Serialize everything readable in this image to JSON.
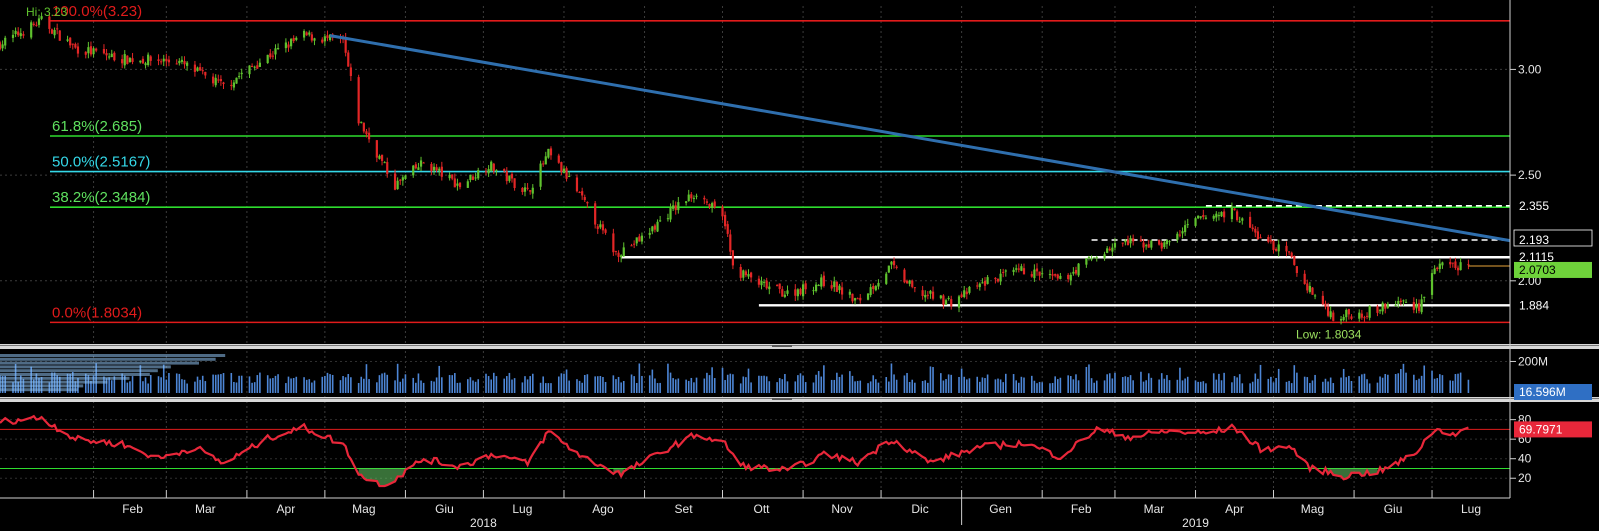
{
  "chart_data": [
    {
      "type": "candlestick",
      "panel": "price",
      "ylim": [
        1.72,
        3.3
      ],
      "y_ticks": [
        2.0,
        2.5,
        3.0
      ],
      "y_tick_labels": [
        "2.00",
        "2.50",
        "3.00"
      ],
      "colors": {
        "up": "#5fc22e",
        "down": "#e32626",
        "fib_red": "#e11b1b",
        "fib_green": "#2edc2e",
        "fib_cyan": "#34d8e8",
        "trend": "#2f6fae"
      },
      "hi_label": "Hi: 3.23",
      "low_label": "Low: 1.8034",
      "fib_levels": [
        {
          "label": "100.0%(3.23)",
          "value": 3.23,
          "color": "#e11b1b",
          "text_color": "#e11b1b"
        },
        {
          "label": "61.8%(2.685)",
          "value": 2.685,
          "color": "#2edc2e",
          "text_color": "#5fe05f"
        },
        {
          "label": "50.0%(2.5167)",
          "value": 2.5167,
          "color": "#34d8e8",
          "text_color": "#34d8e8"
        },
        {
          "label": "38.2%(2.3484)",
          "value": 2.3484,
          "color": "#2edc2e",
          "text_color": "#5fe05f"
        },
        {
          "label": "0.0%(1.8034)",
          "value": 1.8034,
          "color": "#e11b1b",
          "text_color": "#e11b1b"
        }
      ],
      "trendline": {
        "start": [
          "2018-05-03",
          3.16
        ],
        "end": [
          "2019-07-31",
          2.19
        ]
      },
      "levels": [
        {
          "tag": "2.355",
          "value": 2.355,
          "style": "dashed",
          "from": "2019-04-05"
        },
        {
          "tag": "2.193",
          "value": 2.193,
          "style": "dashed",
          "from": "2019-02-20"
        },
        {
          "tag": "2.1115",
          "value": 2.1115,
          "style": "solid",
          "from": "2018-08-23"
        },
        {
          "tag": "1.884",
          "value": 1.884,
          "style": "solid",
          "from": "2018-10-15"
        }
      ],
      "last_price_tag": "2.0703",
      "last_price": 2.0703,
      "anchors": [
        [
          "2017-12-27",
          3.12
        ],
        [
          "2018-01-12",
          3.23
        ],
        [
          "2018-01-25",
          3.1
        ],
        [
          "2018-02-12",
          3.05
        ],
        [
          "2018-03-05",
          3.04
        ],
        [
          "2018-03-23",
          2.92
        ],
        [
          "2018-04-10",
          3.07
        ],
        [
          "2018-04-23",
          3.16
        ],
        [
          "2018-05-08",
          3.13
        ],
        [
          "2018-05-14",
          2.76
        ],
        [
          "2018-05-28",
          2.45
        ],
        [
          "2018-06-08",
          2.56
        ],
        [
          "2018-06-22",
          2.45
        ],
        [
          "2018-07-03",
          2.55
        ],
        [
          "2018-07-18",
          2.42
        ],
        [
          "2018-07-26",
          2.6
        ],
        [
          "2018-08-03",
          2.48
        ],
        [
          "2018-08-21",
          2.13
        ],
        [
          "2018-08-31",
          2.2
        ],
        [
          "2018-09-11",
          2.33
        ],
        [
          "2018-09-21",
          2.42
        ],
        [
          "2018-10-02",
          2.28
        ],
        [
          "2018-10-05",
          2.06
        ],
        [
          "2018-10-16",
          1.98
        ],
        [
          "2018-10-26",
          1.94
        ],
        [
          "2018-11-10",
          2.0
        ],
        [
          "2018-11-22",
          1.9
        ],
        [
          "2018-12-05",
          2.07
        ],
        [
          "2018-12-14",
          1.95
        ],
        [
          "2018-12-28",
          1.9
        ],
        [
          "2019-01-11",
          2.0
        ],
        [
          "2019-01-25",
          2.05
        ],
        [
          "2019-02-08",
          2.0
        ],
        [
          "2019-02-19",
          2.1
        ],
        [
          "2019-03-04",
          2.18
        ],
        [
          "2019-03-20",
          2.17
        ],
        [
          "2019-04-02",
          2.29
        ],
        [
          "2019-04-15",
          2.33
        ],
        [
          "2019-04-26",
          2.2
        ],
        [
          "2019-05-07",
          2.12
        ],
        [
          "2019-05-12",
          2.0
        ],
        [
          "2019-05-24",
          1.83
        ],
        [
          "2019-06-05",
          1.85
        ],
        [
          "2019-06-19",
          1.9
        ],
        [
          "2019-06-26",
          1.88
        ],
        [
          "2019-07-02",
          2.06
        ],
        [
          "2019-07-15",
          2.07
        ]
      ]
    },
    {
      "type": "bar",
      "panel": "volume",
      "y_ticks": [
        200
      ],
      "y_tick_labels": [
        "200M"
      ],
      "last_tag": "16.596M",
      "ylim": [
        0,
        260
      ]
    },
    {
      "type": "line",
      "panel": "rsi",
      "ylim": [
        10,
        95
      ],
      "y_ticks": [
        20,
        40,
        60,
        80
      ],
      "y_tick_labels": [
        "20",
        "40",
        "60",
        "80"
      ],
      "overbought": 70,
      "oversold": 30,
      "last_tag": "69.7971",
      "anchors": [
        [
          "2017-12-27",
          78
        ],
        [
          "2018-01-12",
          82
        ],
        [
          "2018-01-25",
          60
        ],
        [
          "2018-02-12",
          55
        ],
        [
          "2018-02-26",
          40
        ],
        [
          "2018-03-12",
          52
        ],
        [
          "2018-03-23",
          35
        ],
        [
          "2018-04-10",
          62
        ],
        [
          "2018-04-23",
          72
        ],
        [
          "2018-05-08",
          55
        ],
        [
          "2018-05-15",
          22
        ],
        [
          "2018-05-24",
          12
        ],
        [
          "2018-06-08",
          40
        ],
        [
          "2018-06-22",
          32
        ],
        [
          "2018-07-05",
          45
        ],
        [
          "2018-07-18",
          35
        ],
        [
          "2018-07-26",
          68
        ],
        [
          "2018-08-08",
          42
        ],
        [
          "2018-08-23",
          24
        ],
        [
          "2018-09-11",
          52
        ],
        [
          "2018-09-21",
          65
        ],
        [
          "2018-10-02",
          55
        ],
        [
          "2018-10-08",
          33
        ],
        [
          "2018-10-26",
          28
        ],
        [
          "2018-11-10",
          45
        ],
        [
          "2018-11-22",
          36
        ],
        [
          "2018-12-05",
          60
        ],
        [
          "2018-12-20",
          36
        ],
        [
          "2019-01-08",
          52
        ],
        [
          "2019-01-25",
          56
        ],
        [
          "2019-02-08",
          42
        ],
        [
          "2019-02-22",
          70
        ],
        [
          "2019-03-07",
          62
        ],
        [
          "2019-03-20",
          68
        ],
        [
          "2019-04-05",
          66
        ],
        [
          "2019-04-16",
          72
        ],
        [
          "2019-04-26",
          50
        ],
        [
          "2019-05-08",
          52
        ],
        [
          "2019-05-14",
          32
        ],
        [
          "2019-05-28",
          22
        ],
        [
          "2019-06-12",
          28
        ],
        [
          "2019-06-24",
          44
        ],
        [
          "2019-07-02",
          70
        ],
        [
          "2019-07-10",
          66
        ],
        [
          "2019-07-15",
          70
        ]
      ]
    }
  ],
  "x_axis": {
    "months": [
      {
        "label": "Feb",
        "date": "2018-02-01"
      },
      {
        "label": "Mar",
        "date": "2018-03-01"
      },
      {
        "label": "Apr",
        "date": "2018-04-01"
      },
      {
        "label": "Mag",
        "date": "2018-05-01"
      },
      {
        "label": "Giu",
        "date": "2018-06-01"
      },
      {
        "label": "Lug",
        "date": "2018-07-01"
      },
      {
        "label": "Ago",
        "date": "2018-08-01"
      },
      {
        "label": "Set",
        "date": "2018-09-01"
      },
      {
        "label": "Ott",
        "date": "2018-10-01"
      },
      {
        "label": "Nov",
        "date": "2018-11-01"
      },
      {
        "label": "Dic",
        "date": "2018-12-01"
      },
      {
        "label": "Gen",
        "date": "2019-01-01"
      },
      {
        "label": "Feb",
        "date": "2019-02-01"
      },
      {
        "label": "Mar",
        "date": "2019-03-01"
      },
      {
        "label": "Apr",
        "date": "2019-04-01"
      },
      {
        "label": "Mag",
        "date": "2019-05-01"
      },
      {
        "label": "Giu",
        "date": "2019-06-01"
      },
      {
        "label": "Lug",
        "date": "2019-07-01"
      }
    ],
    "years": [
      {
        "label": "2018",
        "date": "2018-07-01"
      },
      {
        "label": "2019",
        "date": "2019-04-01"
      }
    ],
    "range": [
      "2017-12-27",
      "2019-07-31"
    ]
  }
}
